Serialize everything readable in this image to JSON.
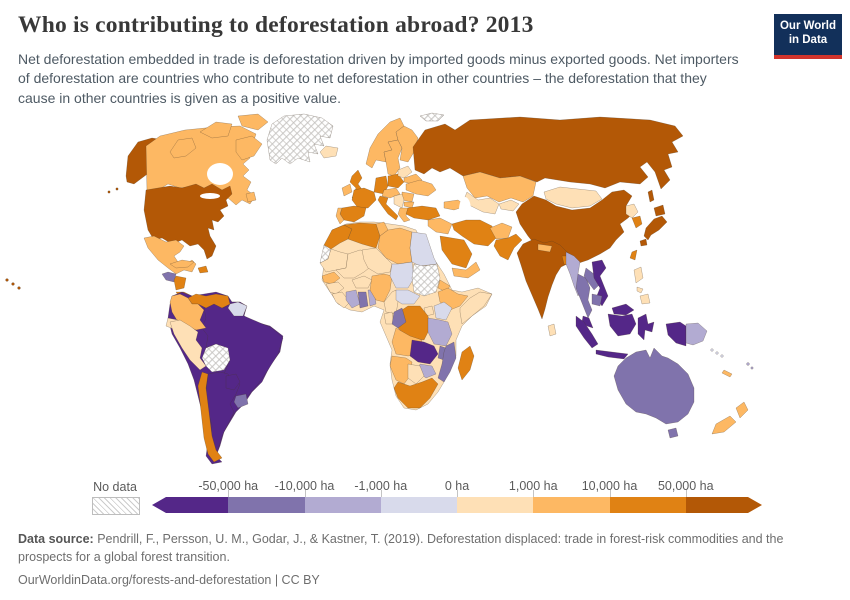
{
  "header": {
    "title": "Who is contributing to deforestation abroad? 2013",
    "subtitle": "Net deforestation embedded in trade is deforestation driven by imported goods minus exported goods. Net importers of deforestation are countries who contribute to net deforestation in other countries – the deforestation that they cause in other countries is given as a positive value.",
    "logo": {
      "line1": "Our World",
      "line2": "in Data",
      "bg_color": "#12305a",
      "accent_color": "#d2342c"
    }
  },
  "legend": {
    "no_data_label": "No data",
    "tick_labels": [
      "-50,000 ha",
      "-10,000 ha",
      "-1,000 ha",
      "0 ha",
      "1,000 ha",
      "10,000 ha",
      "50,000 ha"
    ],
    "bin_colors": [
      "#542788",
      "#8073ac",
      "#b2abd2",
      "#d8daeb",
      "#fee0b6",
      "#fdb863",
      "#e08214",
      "#b35806"
    ],
    "no_data_pattern": "diagonal-hatch"
  },
  "footer": {
    "source_label": "Data source:",
    "source_text": " Pendrill, F., Persson, U. M., Godar, J., & Kastner, T. (2019). Deforestation displaced: trade in forest-risk commodities and the prospects for a global forest transition.",
    "link_line": "OurWorldinData.org/forests-and-deforestation | CC BY"
  },
  "chart_data": {
    "type": "choropleth_map",
    "title": "Who is contributing to deforestation abroad?",
    "year": 2013,
    "unit": "ha",
    "bin_edges": [
      "-50,000 ha",
      "-10,000 ha",
      "-1,000 ha",
      "0 ha",
      "1,000 ha",
      "10,000 ha",
      "50,000 ha"
    ],
    "bin_colors": [
      "#542788",
      "#8073ac",
      "#b2abd2",
      "#d8daeb",
      "#fee0b6",
      "#fdb863",
      "#e08214",
      "#b35806"
    ],
    "legend_note": "bin is an index into bin_colors; 'no_data' means hatched",
    "countries": [
      {
        "id": "usa",
        "name": "United States",
        "bin": 7
      },
      {
        "id": "canada",
        "name": "Canada",
        "bin": 5
      },
      {
        "id": "greenland",
        "name": "Greenland",
        "bin": "no_data"
      },
      {
        "id": "iceland",
        "name": "Iceland",
        "bin": 4
      },
      {
        "id": "mexico",
        "name": "Mexico",
        "bin": 5
      },
      {
        "id": "guatemala",
        "name": "Guatemala",
        "bin": 1
      },
      {
        "id": "honduras-nicaragua",
        "name": "Honduras & Nicaragua",
        "bin": 6
      },
      {
        "id": "costa-rica-panama",
        "name": "Costa Rica & Panama",
        "bin": 6
      },
      {
        "id": "cuba",
        "name": "Cuba",
        "bin": 5
      },
      {
        "id": "hispaniola",
        "name": "Dominican Republic & Haiti",
        "bin": 6
      },
      {
        "id": "colombia",
        "name": "Colombia",
        "bin": 5
      },
      {
        "id": "venezuela",
        "name": "Venezuela",
        "bin": 6
      },
      {
        "id": "guyanas",
        "name": "Guyana, Suriname & French Guiana",
        "bin": 3
      },
      {
        "id": "ecuador",
        "name": "Ecuador",
        "bin": 4
      },
      {
        "id": "peru",
        "name": "Peru",
        "bin": 4
      },
      {
        "id": "brazil",
        "name": "Brazil",
        "bin": 0
      },
      {
        "id": "bolivia",
        "name": "Bolivia",
        "bin": "no_data"
      },
      {
        "id": "paraguay",
        "name": "Paraguay",
        "bin": 0
      },
      {
        "id": "chile",
        "name": "Chile",
        "bin": 6
      },
      {
        "id": "argentina",
        "name": "Argentina",
        "bin": 0
      },
      {
        "id": "uruguay",
        "name": "Uruguay",
        "bin": 1
      },
      {
        "id": "ireland",
        "name": "Ireland",
        "bin": 5
      },
      {
        "id": "united-kingdom",
        "name": "United Kingdom",
        "bin": 6
      },
      {
        "id": "norway",
        "name": "Norway",
        "bin": 5
      },
      {
        "id": "sweden",
        "name": "Sweden",
        "bin": 5
      },
      {
        "id": "finland",
        "name": "Finland",
        "bin": 5
      },
      {
        "id": "denmark",
        "name": "Denmark",
        "bin": 6
      },
      {
        "id": "germany",
        "name": "Germany",
        "bin": 6
      },
      {
        "id": "france",
        "name": "France",
        "bin": 6
      },
      {
        "id": "spain",
        "name": "Spain",
        "bin": 6
      },
      {
        "id": "portugal",
        "name": "Portugal",
        "bin": 5
      },
      {
        "id": "italy",
        "name": "Italy",
        "bin": 6
      },
      {
        "id": "central-europe",
        "name": "Central Europe",
        "bin": 5
      },
      {
        "id": "poland",
        "name": "Poland",
        "bin": 6
      },
      {
        "id": "baltics",
        "name": "Baltic states",
        "bin": 4
      },
      {
        "id": "belarus",
        "name": "Belarus",
        "bin": 5
      },
      {
        "id": "ukraine",
        "name": "Ukraine",
        "bin": 5
      },
      {
        "id": "romania",
        "name": "Romania",
        "bin": 5
      },
      {
        "id": "bulgaria",
        "name": "Bulgaria",
        "bin": 5
      },
      {
        "id": "balkans",
        "name": "Balkans",
        "bin": 4
      },
      {
        "id": "greece",
        "name": "Greece",
        "bin": 5
      },
      {
        "id": "caucasus",
        "name": "Caucasus",
        "bin": 5
      },
      {
        "id": "russia",
        "name": "Russia",
        "bin": 7
      },
      {
        "id": "svalbard",
        "name": "Svalbard",
        "bin": "no_data"
      },
      {
        "id": "turkey",
        "name": "Turkey",
        "bin": 6
      },
      {
        "id": "syria-iraq",
        "name": "Syria & Iraq",
        "bin": 5
      },
      {
        "id": "saudi-arabia",
        "name": "Saudi Arabia",
        "bin": 6
      },
      {
        "id": "yemen-oman",
        "name": "Yemen & Oman",
        "bin": 5
      },
      {
        "id": "iran",
        "name": "Iran",
        "bin": 6
      },
      {
        "id": "afghanistan",
        "name": "Afghanistan",
        "bin": 5
      },
      {
        "id": "pakistan",
        "name": "Pakistan",
        "bin": 6
      },
      {
        "id": "kazakhstan",
        "name": "Kazakhstan",
        "bin": 5
      },
      {
        "id": "uzbekistan-turkmenistan",
        "name": "Uzbekistan & Turkmenistan",
        "bin": 4
      },
      {
        "id": "kyrgyzstan-tajikistan",
        "name": "Kyrgyzstan & Tajikistan",
        "bin": 4
      },
      {
        "id": "mongolia",
        "name": "Mongolia",
        "bin": 4
      },
      {
        "id": "china",
        "name": "China",
        "bin": 7
      },
      {
        "id": "north-korea",
        "name": "North Korea",
        "bin": 4
      },
      {
        "id": "south-korea",
        "name": "South Korea",
        "bin": 6
      },
      {
        "id": "japan",
        "name": "Japan",
        "bin": 7
      },
      {
        "id": "taiwan",
        "name": "Taiwan",
        "bin": 6
      },
      {
        "id": "india",
        "name": "India",
        "bin": 7
      },
      {
        "id": "nepal",
        "name": "Nepal",
        "bin": 5
      },
      {
        "id": "bangladesh",
        "name": "Bangladesh",
        "bin": 6
      },
      {
        "id": "sri-lanka",
        "name": "Sri Lanka",
        "bin": 4
      },
      {
        "id": "myanmar",
        "name": "Myanmar",
        "bin": 2
      },
      {
        "id": "thailand",
        "name": "Thailand",
        "bin": 1
      },
      {
        "id": "laos",
        "name": "Laos",
        "bin": 1
      },
      {
        "id": "vietnam",
        "name": "Vietnam",
        "bin": 0
      },
      {
        "id": "cambodia",
        "name": "Cambodia",
        "bin": 1
      },
      {
        "id": "malaysia",
        "name": "Malaysia",
        "bin": 0
      },
      {
        "id": "indonesia",
        "name": "Indonesia",
        "bin": 0
      },
      {
        "id": "philippines",
        "name": "Philippines",
        "bin": 4
      },
      {
        "id": "papua-new-guinea",
        "name": "Papua New Guinea",
        "bin": 2
      },
      {
        "id": "morocco",
        "name": "Morocco",
        "bin": 6
      },
      {
        "id": "western-sahara",
        "name": "Western Sahara",
        "bin": "no_data"
      },
      {
        "id": "algeria",
        "name": "Algeria",
        "bin": 6
      },
      {
        "id": "tunisia",
        "name": "Tunisia",
        "bin": 5
      },
      {
        "id": "libya",
        "name": "Libya",
        "bin": 5
      },
      {
        "id": "egypt",
        "name": "Egypt",
        "bin": 3
      },
      {
        "id": "mauritania",
        "name": "Mauritania",
        "bin": 4
      },
      {
        "id": "mali",
        "name": "Mali",
        "bin": 4
      },
      {
        "id": "senegal",
        "name": "Senegal",
        "bin": 5
      },
      {
        "id": "guinea",
        "name": "Guinea",
        "bin": 4
      },
      {
        "id": "sierra-leone-liberia",
        "name": "Sierra Leone & Liberia",
        "bin": 4
      },
      {
        "id": "cote-divoire",
        "name": "Cote d'Ivoire",
        "bin": 2
      },
      {
        "id": "ghana",
        "name": "Ghana",
        "bin": 1
      },
      {
        "id": "togo-benin",
        "name": "Togo & Benin",
        "bin": 2
      },
      {
        "id": "burkina-faso",
        "name": "Burkina Faso",
        "bin": 4
      },
      {
        "id": "niger",
        "name": "Niger",
        "bin": 4
      },
      {
        "id": "nigeria",
        "name": "Nigeria",
        "bin": 5
      },
      {
        "id": "chad",
        "name": "Chad",
        "bin": 3
      },
      {
        "id": "sudan",
        "name": "Sudan",
        "bin": "no_data"
      },
      {
        "id": "eritrea",
        "name": "Eritrea & Djibouti",
        "bin": 5
      },
      {
        "id": "ethiopia",
        "name": "Ethiopia",
        "bin": 5
      },
      {
        "id": "somalia",
        "name": "Somalia",
        "bin": 4
      },
      {
        "id": "cameroon",
        "name": "Cameroon",
        "bin": 4
      },
      {
        "id": "central-african-republic",
        "name": "Central African Republic",
        "bin": 3
      },
      {
        "id": "uganda",
        "name": "Uganda",
        "bin": 4
      },
      {
        "id": "kenya",
        "name": "Kenya",
        "bin": 3
      },
      {
        "id": "dr-congo",
        "name": "Democratic Republic of Congo",
        "bin": 6
      },
      {
        "id": "gabon",
        "name": "Gabon",
        "bin": 4
      },
      {
        "id": "congo",
        "name": "Congo",
        "bin": 1
      },
      {
        "id": "tanzania",
        "name": "Tanzania",
        "bin": 2
      },
      {
        "id": "angola",
        "name": "Angola",
        "bin": 5
      },
      {
        "id": "zambia",
        "name": "Zambia",
        "bin": 0
      },
      {
        "id": "malawi",
        "name": "Malawi",
        "bin": 1
      },
      {
        "id": "mozambique",
        "name": "Mozambique",
        "bin": 1
      },
      {
        "id": "zimbabwe",
        "name": "Zimbabwe",
        "bin": 2
      },
      {
        "id": "namibia",
        "name": "Namibia",
        "bin": 5
      },
      {
        "id": "botswana",
        "name": "Botswana",
        "bin": 4
      },
      {
        "id": "south-africa",
        "name": "South Africa",
        "bin": 6
      },
      {
        "id": "madagascar",
        "name": "Madagascar",
        "bin": 6
      },
      {
        "id": "australia",
        "name": "Australia",
        "bin": 1
      },
      {
        "id": "new-zealand",
        "name": "New Zealand",
        "bin": 5
      },
      {
        "id": "new-caledonia",
        "name": "New Caledonia",
        "bin": 5
      },
      {
        "id": "fiji",
        "name": "Fiji",
        "bin": 2
      },
      {
        "id": "solomon-islands",
        "name": "Solomon Islands",
        "bin": 3
      }
    ]
  }
}
